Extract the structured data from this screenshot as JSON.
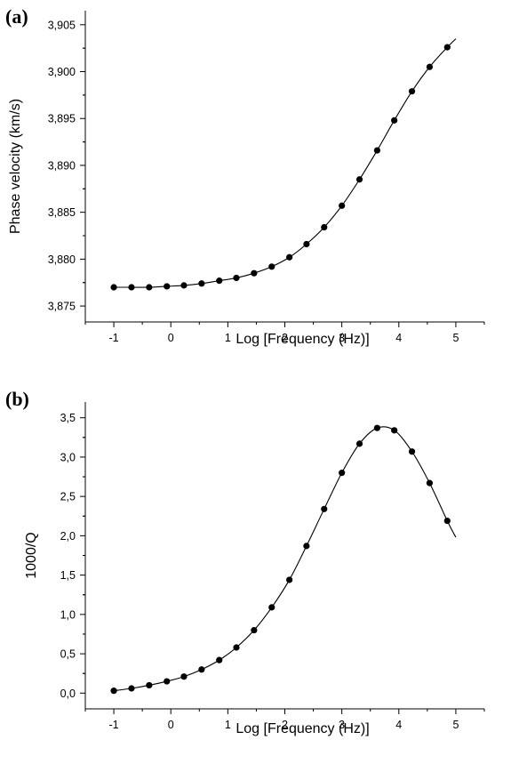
{
  "chart_data": [
    {
      "panel_label": "(a)",
      "type": "line",
      "xlabel": "Log [Frequency (Hz)]",
      "ylabel": "Phase velocity (km/s)",
      "xlim": [
        -1.5,
        5.5
      ],
      "ylim": [
        3.8733,
        3.9065
      ],
      "xticks": [
        -1,
        0,
        1,
        2,
        3,
        4,
        5
      ],
      "xtick_labels": [
        "-1",
        "0",
        "1",
        "2",
        "3",
        "4",
        "5"
      ],
      "yticks": [
        3.875,
        3.88,
        3.885,
        3.89,
        3.895,
        3.9,
        3.905
      ],
      "ytick_labels": [
        "3,875",
        "3,880",
        "3,885",
        "3,890",
        "3,895",
        "3,900",
        "3,905"
      ],
      "grid": false,
      "series": [
        {
          "style": "markers",
          "x": [
            -1.0,
            -0.69,
            -0.38,
            -0.07,
            0.23,
            0.54,
            0.85,
            1.15,
            1.46,
            1.77,
            2.08,
            2.38,
            2.69,
            3.0,
            3.31,
            3.62,
            3.92,
            4.23,
            4.54,
            4.85
          ],
          "y": [
            3.877,
            3.877,
            3.877,
            3.8771,
            3.8772,
            3.8774,
            3.8777,
            3.878,
            3.8785,
            3.8792,
            3.8802,
            3.8816,
            3.8834,
            3.8857,
            3.8885,
            3.8916,
            3.8948,
            3.8979,
            3.9005,
            3.9026
          ]
        },
        {
          "style": "curve",
          "x": [
            -1.0,
            -0.69,
            -0.38,
            -0.07,
            0.23,
            0.54,
            0.85,
            1.15,
            1.46,
            1.77,
            2.08,
            2.38,
            2.69,
            3.0,
            3.31,
            3.62,
            3.92,
            4.23,
            4.54,
            4.85,
            5.0
          ],
          "y": [
            3.877,
            3.877,
            3.877,
            3.8771,
            3.8772,
            3.8774,
            3.8777,
            3.878,
            3.8785,
            3.8792,
            3.8802,
            3.8816,
            3.8834,
            3.8857,
            3.8885,
            3.8916,
            3.8948,
            3.8979,
            3.9005,
            3.9026,
            3.9035
          ]
        }
      ]
    },
    {
      "panel_label": "(b)",
      "type": "line",
      "xlabel": "Log [Frequency (Hz)]",
      "ylabel": "1000/Q",
      "xlim": [
        -1.5,
        5.5
      ],
      "ylim": [
        -0.2,
        3.7
      ],
      "xticks": [
        -1,
        0,
        1,
        2,
        3,
        4,
        5
      ],
      "xtick_labels": [
        "-1",
        "0",
        "1",
        "2",
        "3",
        "4",
        "5"
      ],
      "yticks": [
        0,
        0.5,
        1,
        1.5,
        2,
        2.5,
        3,
        3.5
      ],
      "ytick_labels": [
        "0,0",
        "0,5",
        "1,0",
        "1,5",
        "2,0",
        "2,5",
        "3,0",
        "3,5"
      ],
      "grid": false,
      "series": [
        {
          "style": "markers",
          "x": [
            -1.0,
            -0.69,
            -0.38,
            -0.07,
            0.23,
            0.54,
            0.85,
            1.15,
            1.46,
            1.77,
            2.08,
            2.38,
            2.69,
            3.0,
            3.31,
            3.62,
            3.92,
            4.23,
            4.54,
            4.85
          ],
          "y": [
            0.03,
            0.06,
            0.1,
            0.15,
            0.21,
            0.3,
            0.42,
            0.58,
            0.8,
            1.09,
            1.44,
            1.87,
            2.34,
            2.8,
            3.17,
            3.37,
            3.34,
            3.07,
            2.67,
            2.19
          ]
        },
        {
          "style": "curve",
          "x": [
            -1.0,
            -0.69,
            -0.38,
            -0.07,
            0.23,
            0.54,
            0.85,
            1.15,
            1.46,
            1.77,
            2.08,
            2.38,
            2.69,
            3.0,
            3.31,
            3.62,
            3.92,
            4.23,
            4.54,
            4.85,
            5.0
          ],
          "y": [
            0.03,
            0.06,
            0.1,
            0.15,
            0.21,
            0.3,
            0.42,
            0.58,
            0.8,
            1.09,
            1.44,
            1.87,
            2.34,
            2.8,
            3.17,
            3.37,
            3.34,
            3.07,
            2.67,
            2.19,
            1.98
          ]
        }
      ]
    }
  ]
}
